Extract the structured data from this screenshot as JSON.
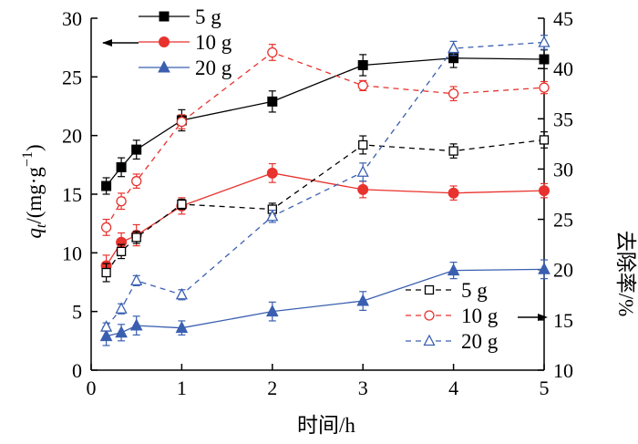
{
  "chart_data": {
    "type": "line",
    "title": "",
    "xlabel": "时间/h",
    "ylabel_left": "q_t/(mg·g^-1)",
    "ylabel_left_parts": {
      "q": "q",
      "sub": "t",
      "rest": "/(mg·g",
      "sup": "−1",
      "close": ")"
    },
    "ylabel_right": "去除率/%",
    "xlim": [
      0,
      5
    ],
    "xticks": [
      "0",
      "1",
      "2",
      "3",
      "4",
      "5"
    ],
    "ylim_left": [
      0,
      30
    ],
    "yticks_left": [
      "0",
      "5",
      "10",
      "15",
      "20",
      "25",
      "30"
    ],
    "ylim_right": [
      10,
      45
    ],
    "yticks_right": [
      "10",
      "15",
      "20",
      "25",
      "30",
      "35",
      "40",
      "45"
    ],
    "x": [
      0.167,
      0.333,
      0.5,
      1,
      2,
      3,
      4,
      5
    ],
    "series": [
      {
        "name": "5 g",
        "axis": "left",
        "marker": "square-filled",
        "line": "solid",
        "color": "#000000",
        "values": [
          15.7,
          17.3,
          18.8,
          21.3,
          22.9,
          26.0,
          26.6,
          26.5
        ],
        "error": [
          0.7,
          0.8,
          0.8,
          0.9,
          0.9,
          0.9,
          0.8,
          0.8
        ]
      },
      {
        "name": "10 g",
        "axis": "left",
        "marker": "circle-filled",
        "line": "solid",
        "color": "#e8322e",
        "values": [
          8.9,
          10.9,
          11.5,
          14.0,
          16.8,
          15.4,
          15.1,
          15.3
        ],
        "error": [
          0.9,
          0.8,
          0.9,
          0.7,
          0.8,
          0.7,
          0.6,
          0.6
        ]
      },
      {
        "name": "20 g",
        "axis": "left",
        "marker": "triangle-filled",
        "line": "solid",
        "color": "#3a5fb0",
        "values": [
          2.9,
          3.2,
          3.8,
          3.6,
          5.0,
          5.9,
          8.5,
          8.6
        ],
        "error": [
          0.8,
          0.7,
          0.8,
          0.6,
          0.8,
          0.8,
          0.7,
          0.8
        ]
      },
      {
        "name": "5 g",
        "axis": "right",
        "marker": "square-open",
        "line": "dashed",
        "color": "#000000",
        "values": [
          19.7,
          21.8,
          23.2,
          26.5,
          26.0,
          32.4,
          31.8,
          32.9
        ],
        "error": [
          0.9,
          0.7,
          0.6,
          0.5,
          0.6,
          0.9,
          0.7,
          0.8
        ]
      },
      {
        "name": "10 g",
        "axis": "right",
        "marker": "circle-open",
        "line": "dashed",
        "color": "#e8322e",
        "values": [
          24.2,
          26.8,
          28.8,
          34.7,
          41.6,
          38.3,
          37.5,
          38.1
        ],
        "error": [
          0.8,
          0.8,
          0.7,
          0.7,
          0.8,
          0.5,
          0.7,
          0.6
        ]
      },
      {
        "name": "20 g",
        "axis": "right",
        "marker": "triangle-open",
        "line": "dashed",
        "color": "#3a5fb0",
        "values": [
          14.3,
          16.1,
          18.9,
          17.5,
          25.3,
          29.7,
          42.0,
          42.6
        ],
        "error": [
          0.4,
          0.5,
          0.5,
          0.5,
          0.6,
          0.9,
          0.7,
          0.7
        ]
      }
    ],
    "legend_left": {
      "placement": "top-left",
      "arrow": "left"
    },
    "legend_right": {
      "placement": "bottom-right",
      "arrow": "right"
    },
    "grid": false
  }
}
